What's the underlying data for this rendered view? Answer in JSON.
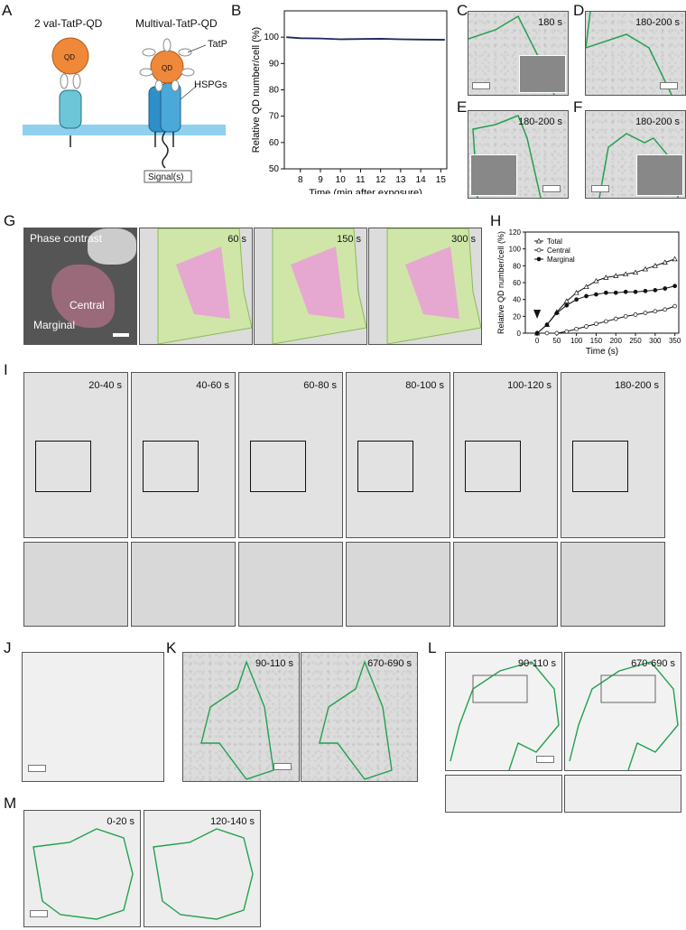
{
  "panels": {
    "A": "A",
    "B": "B",
    "C": "C",
    "D": "D",
    "E": "E",
    "F": "F",
    "G": "G",
    "H": "H",
    "I": "I",
    "J": "J",
    "K": "K",
    "L": "L",
    "M": "M"
  },
  "panelA": {
    "label_2val": "2 val-TatP-QD",
    "label_multi": "Multival-TatP-QD",
    "qd": "QD",
    "tatp": "TatP",
    "hspgs": "HSPGs",
    "signal": "Signal(s)"
  },
  "panelB_chart": {
    "type": "line",
    "xlabel": "Time (min after exposure)",
    "ylabel": "Relative QD number/cell (%)",
    "xticks": [
      "8",
      "9",
      "10",
      "11",
      "12",
      "13",
      "14",
      "15"
    ],
    "yticks": [
      "50",
      "60",
      "70",
      "80",
      "90",
      "100"
    ],
    "xlim": [
      7.2,
      15.3
    ],
    "ylim": [
      50,
      110
    ],
    "series": [
      {
        "x": [
          7.3,
          8,
          9,
          10,
          11,
          12,
          13,
          14,
          15.2
        ],
        "values": [
          100,
          99.6,
          99.5,
          99.2,
          99.3,
          99.4,
          99.2,
          99.1,
          99.0
        ]
      }
    ]
  },
  "stamps": {
    "C": "180 s",
    "D": "180-200 s",
    "E": "180-200 s",
    "F": "180-200 s",
    "G1": "60 s",
    "G2": "150 s",
    "G3": "300 s",
    "I1": "20-40 s",
    "I2": "40-60 s",
    "I3": "60-80 s",
    "I4": "80-100 s",
    "I5": "100-120 s",
    "I6": "180-200 s",
    "K1": "90-110 s",
    "K2": "670-690 s",
    "L1": "90-110 s",
    "L2": "670-690 s",
    "M1": "0-20 s",
    "M2": "120-140 s"
  },
  "panelG": {
    "phase": "Phase contrast",
    "central": "Central",
    "marginal": "Marginal"
  },
  "panelH_chart": {
    "type": "scatter",
    "xlabel": "Time (s)",
    "ylabel": "Relative QD number/cell (%)",
    "xticks": [
      "0",
      "50",
      "100",
      "150",
      "200",
      "250",
      "300",
      "350"
    ],
    "yticks": [
      "0",
      "20",
      "40",
      "60",
      "80",
      "100",
      "120"
    ],
    "xlim": [
      -30,
      360
    ],
    "ylim": [
      0,
      120
    ],
    "legend": [
      "Total",
      "Central",
      "Marginal"
    ],
    "series": [
      {
        "name": "Total",
        "x": [
          0,
          25,
          50,
          75,
          100,
          125,
          150,
          175,
          200,
          225,
          250,
          275,
          300,
          325,
          350
        ],
        "values": [
          0,
          10,
          25,
          38,
          48,
          55,
          62,
          66,
          68,
          70,
          72,
          76,
          80,
          84,
          88
        ]
      },
      {
        "name": "Central",
        "x": [
          0,
          25,
          50,
          75,
          100,
          125,
          150,
          175,
          200,
          225,
          250,
          275,
          300,
          325,
          350
        ],
        "values": [
          0,
          0,
          0,
          2,
          5,
          8,
          11,
          14,
          17,
          20,
          22,
          24,
          26,
          28,
          32
        ]
      },
      {
        "name": "Marginal",
        "x": [
          0,
          25,
          50,
          75,
          100,
          125,
          150,
          175,
          200,
          225,
          250,
          275,
          300,
          325,
          350
        ],
        "values": [
          0,
          10,
          24,
          33,
          40,
          44,
          46,
          48,
          48,
          49,
          49,
          50,
          51,
          53,
          56
        ]
      }
    ]
  }
}
